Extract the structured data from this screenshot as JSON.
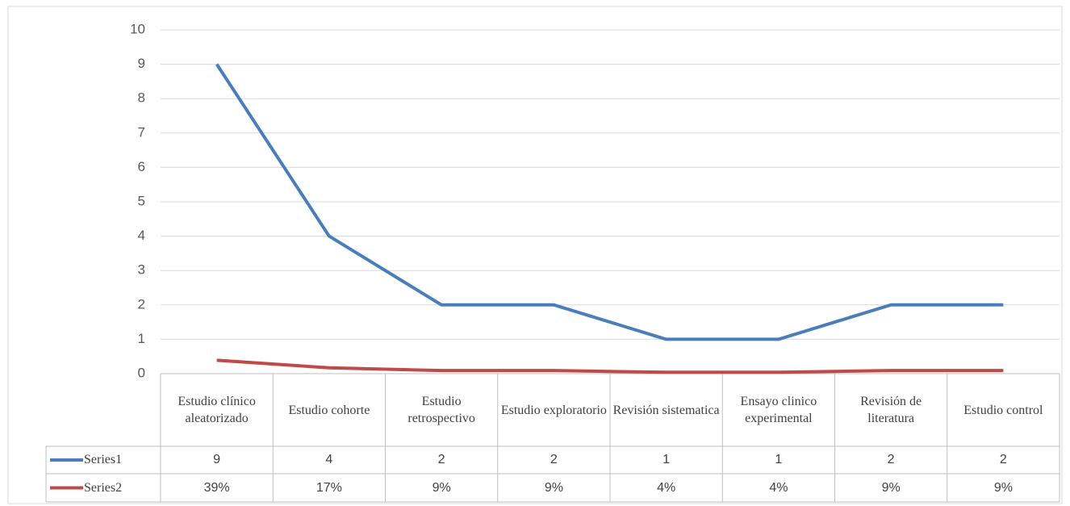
{
  "chart_data": {
    "type": "line",
    "categories": [
      "Estudio clínico aleatorizado",
      "Estudio cohorte",
      "Estudio retrospectivo",
      "Estudio exploratorio",
      "Revisión sistematica",
      "Ensayo clinico experimental",
      "Revisión de literatura",
      "Estudio control"
    ],
    "series": [
      {
        "name": "Series1",
        "color": "#4a7ebb",
        "values": [
          9,
          4,
          2,
          2,
          1,
          1,
          2,
          2
        ]
      },
      {
        "name": "Series2",
        "color": "#be4b48",
        "values": [
          0.39,
          0.17,
          0.09,
          0.09,
          0.04,
          0.04,
          0.09,
          0.09
        ],
        "value_labels": [
          "39%",
          "17%",
          "9%",
          "9%",
          "4%",
          "4%",
          "9%",
          "9%"
        ]
      }
    ],
    "ylim": [
      0,
      10
    ],
    "yticks": [
      0,
      1,
      2,
      3,
      4,
      5,
      6,
      7,
      8,
      9,
      10
    ],
    "grid": true,
    "data_table": true
  }
}
